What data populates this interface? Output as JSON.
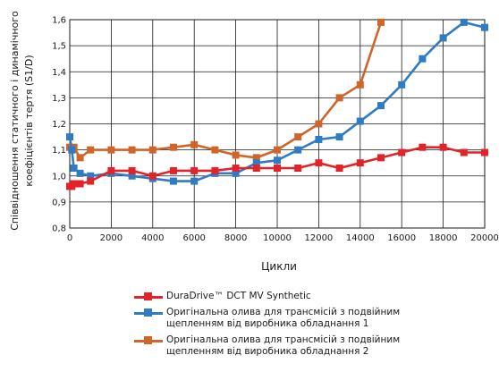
{
  "chart_data": {
    "type": "line",
    "ylabel_line1": "Співвідношення статичного і динамічного",
    "ylabel_line2": "коефіцієнтів тертя  (S1/D)",
    "xlabel": "Цикли",
    "xlim": [
      0,
      20000
    ],
    "ylim": [
      0.8,
      1.6
    ],
    "x_ticks": [
      0,
      2000,
      4000,
      6000,
      8000,
      10000,
      12000,
      14000,
      16000,
      18000,
      20000
    ],
    "y_ticks": [
      0.8,
      0.9,
      1.0,
      1.1,
      1.2,
      1.3,
      1.4,
      1.5,
      1.6
    ],
    "y_tick_labels": [
      "0,8",
      "0,9",
      "1,0",
      "1,1",
      "1,2",
      "1,3",
      "1,4",
      "1,5",
      "1,6"
    ],
    "grid": true,
    "legend_position": "bottom",
    "series": [
      {
        "name": "DuraDrive™ DCT MV Synthetic",
        "color": "#e3232a",
        "x": [
          0,
          100,
          200,
          500,
          1000,
          2000,
          3000,
          4000,
          5000,
          6000,
          7000,
          8000,
          9000,
          10000,
          11000,
          12000,
          13000,
          14000,
          15000,
          16000,
          17000,
          18000,
          19000,
          20000
        ],
        "y": [
          0.96,
          0.96,
          0.97,
          0.97,
          0.98,
          1.02,
          1.02,
          1.0,
          1.02,
          1.02,
          1.02,
          1.03,
          1.03,
          1.03,
          1.03,
          1.05,
          1.03,
          1.05,
          1.07,
          1.09,
          1.11,
          1.11,
          1.09,
          1.09
        ]
      },
      {
        "name": "Оригінальна олива  для трансмісій з подвійним щепленням від виробника обладнання 1",
        "color": "#2f7cc3",
        "x": [
          0,
          100,
          200,
          500,
          1000,
          2000,
          3000,
          4000,
          5000,
          6000,
          7000,
          8000,
          9000,
          10000,
          11000,
          12000,
          13000,
          14000,
          15000,
          16000,
          17000,
          18000,
          19000,
          20000
        ],
        "y": [
          1.15,
          1.1,
          1.03,
          1.01,
          1.0,
          1.01,
          1.0,
          0.99,
          0.98,
          0.98,
          1.01,
          1.01,
          1.05,
          1.06,
          1.1,
          1.14,
          1.15,
          1.21,
          1.27,
          1.35,
          1.45,
          1.53,
          1.59,
          1.57
        ]
      },
      {
        "name": "Оригінальна олива для трансмісій з подвійним щепленням від виробника обладнання 2",
        "color": "#d0652a",
        "x": [
          0,
          100,
          200,
          500,
          1000,
          2000,
          3000,
          4000,
          5000,
          6000,
          7000,
          8000,
          9000,
          10000,
          11000,
          12000,
          13000,
          14000,
          15000
        ],
        "y": [
          1.11,
          1.1,
          1.11,
          1.07,
          1.1,
          1.1,
          1.1,
          1.1,
          1.11,
          1.12,
          1.1,
          1.08,
          1.07,
          1.1,
          1.15,
          1.2,
          1.3,
          1.35,
          1.59
        ]
      }
    ]
  }
}
